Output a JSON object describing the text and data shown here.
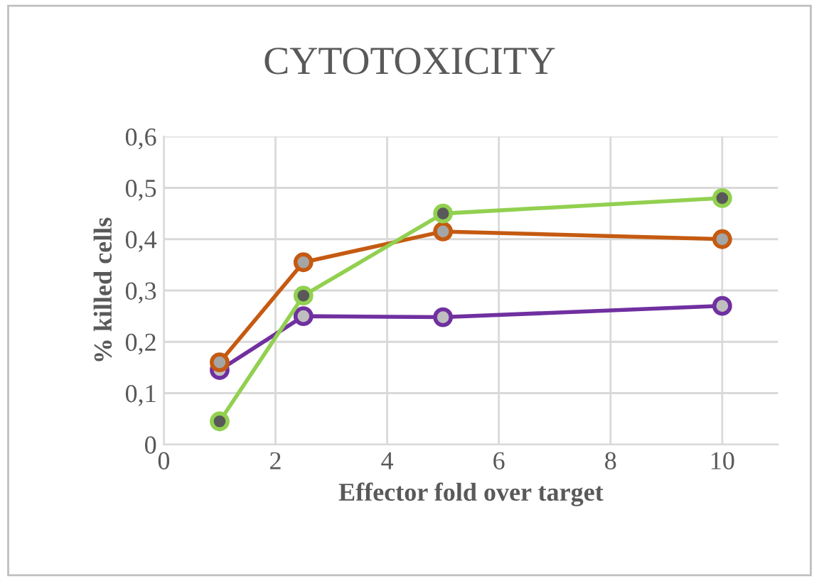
{
  "chart_data": {
    "type": "line",
    "title": "CYTOTOXICITY",
    "xlabel": "Effector fold over target",
    "ylabel": "% killed cells",
    "xlim": [
      0,
      11
    ],
    "xticks": [
      0,
      2,
      4,
      6,
      8,
      10
    ],
    "ylim": [
      0,
      0.6
    ],
    "yticks": [
      {
        "value": 0,
        "label": "0"
      },
      {
        "value": 0.1,
        "label": "0,1"
      },
      {
        "value": 0.2,
        "label": "0,2"
      },
      {
        "value": 0.3,
        "label": "0,3"
      },
      {
        "value": 0.4,
        "label": "0,4"
      },
      {
        "value": 0.5,
        "label": "0,5"
      },
      {
        "value": 0.6,
        "label": "0,6"
      }
    ],
    "grid": true,
    "marker": "circle",
    "line_style": "solid",
    "legend": false,
    "series": [
      {
        "color": "#92d050",
        "x": [
          1,
          2.5,
          5,
          10
        ],
        "values": [
          0.045,
          0.29,
          0.45,
          0.48
        ]
      },
      {
        "color": "#c55a11",
        "x": [
          1,
          2.5,
          5,
          10
        ],
        "values": [
          0.16,
          0.355,
          0.415,
          0.4
        ]
      },
      {
        "color": "#7030a0",
        "x": [
          1,
          2.5,
          5,
          10
        ],
        "values": [
          0.145,
          0.25,
          0.248,
          0.27
        ]
      }
    ]
  }
}
